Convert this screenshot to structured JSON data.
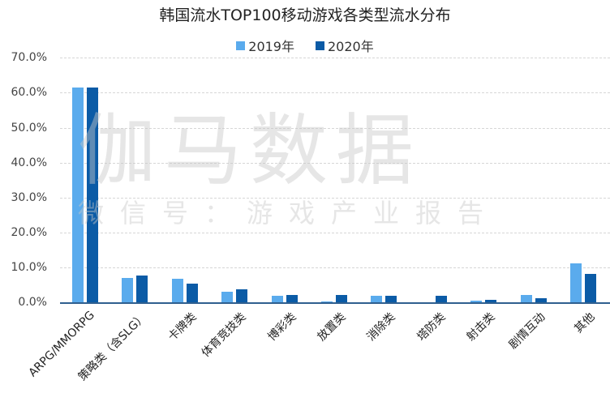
{
  "chart_data": {
    "type": "bar",
    "title": "韩国流水TOP100移动游戏各类型流水分布",
    "xlabel": "",
    "ylabel": "",
    "ylim": [
      0,
      70
    ],
    "yticks": [
      "0.0%",
      "10.0%",
      "20.0%",
      "30.0%",
      "40.0%",
      "50.0%",
      "60.0%",
      "70.0%"
    ],
    "grid": true,
    "legend_position": "top",
    "categories": [
      "ARPG/MMORPG",
      "策略类（含SLG）",
      "卡牌类",
      "体育竞技类",
      "博彩类",
      "放置类",
      "消除类",
      "塔防类",
      "射击类",
      "剧情互动",
      "其他"
    ],
    "series": [
      {
        "name": "2019年",
        "color": "#5aabed",
        "values": [
          61.5,
          7.0,
          6.7,
          3.1,
          1.9,
          0.3,
          1.9,
          0.0,
          0.5,
          2.2,
          11.1
        ]
      },
      {
        "name": "2020年",
        "color": "#0b5ba6",
        "values": [
          61.5,
          7.7,
          5.3,
          3.7,
          2.2,
          2.2,
          1.9,
          1.8,
          0.8,
          1.2,
          8.2
        ]
      }
    ]
  },
  "watermark": {
    "main": "伽马数据",
    "sub": "微信号：游戏产业报告"
  }
}
